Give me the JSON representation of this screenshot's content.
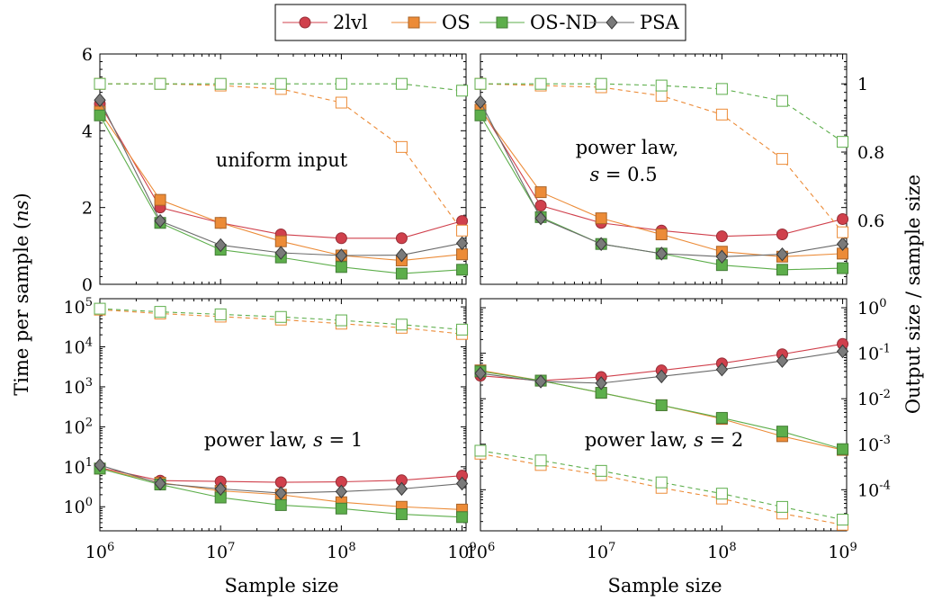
{
  "y_left_label": "Time per sample (",
  "y_left_label_unit": "ns",
  "y_left_label_end": ")",
  "y_right_label": "Output size / sample size",
  "x_label": "Sample size",
  "legend": [
    {
      "name": "2lvl",
      "color": "#d0404c",
      "marker": "circle"
    },
    {
      "name": "OS",
      "color": "#ec8b37",
      "marker": "square"
    },
    {
      "name": "OS-ND",
      "color": "#5dae4b",
      "marker": "square"
    },
    {
      "name": "PSA",
      "color": "#6a6a6a",
      "marker": "diamond"
    }
  ],
  "chart_data": [
    {
      "type": "line",
      "panel_label": "uniform input",
      "x": [
        1000000,
        3160000,
        10000000,
        31600000,
        100000000,
        316000000,
        1000000000
      ],
      "x_ticks": [
        "10^6",
        "10^7",
        "10^8",
        "10^9"
      ],
      "left_axis": {
        "scale": "linear",
        "ylim": [
          0,
          6
        ],
        "ticks": [
          "0",
          "2",
          "4",
          "6"
        ]
      },
      "right_axis": {
        "scale": "linear",
        "ylim": [
          0.4125,
          1.0875
        ]
      },
      "series": [
        {
          "name": "2lvl",
          "axis": "left",
          "style": "solid",
          "values": [
            4.7,
            2.0,
            1.6,
            1.3,
            1.2,
            1.2,
            1.65
          ]
        },
        {
          "name": "OS",
          "axis": "left",
          "style": "solid",
          "values": [
            4.5,
            2.2,
            1.6,
            1.12,
            0.75,
            0.62,
            0.78
          ]
        },
        {
          "name": "OS-ND",
          "axis": "left",
          "style": "solid",
          "values": [
            4.4,
            1.6,
            0.9,
            0.7,
            0.45,
            0.28,
            0.38
          ]
        },
        {
          "name": "PSA",
          "axis": "left",
          "style": "solid",
          "values": [
            4.8,
            1.65,
            1.02,
            0.82,
            0.75,
            0.76,
            1.07
          ]
        },
        {
          "name": "OS",
          "axis": "right",
          "style": "dashed",
          "values": [
            1.0,
            1.0,
            0.995,
            0.985,
            0.945,
            0.815,
            0.57
          ]
        },
        {
          "name": "OS-ND",
          "axis": "right",
          "style": "dashed",
          "values": [
            1.0,
            1.0,
            1.0,
            1.0,
            1.0,
            1.0,
            0.98
          ]
        }
      ]
    },
    {
      "type": "line",
      "panel_label": "power law,",
      "panel_label_2": "s = 0.5",
      "x": [
        1000000,
        3160000,
        10000000,
        31600000,
        100000000,
        316000000,
        1000000000
      ],
      "x_ticks": [
        "10^6",
        "10^7",
        "10^8",
        "10^9"
      ],
      "left_axis": {
        "scale": "linear",
        "ylim": [
          0,
          6
        ]
      },
      "right_axis": {
        "scale": "linear",
        "ylim": [
          0.4125,
          1.0875
        ],
        "ticks": [
          "0.6",
          "0.8",
          "1"
        ]
      },
      "series": [
        {
          "name": "2lvl",
          "axis": "left",
          "style": "solid",
          "values": [
            4.6,
            2.05,
            1.6,
            1.4,
            1.25,
            1.3,
            1.7
          ]
        },
        {
          "name": "OS",
          "axis": "left",
          "style": "solid",
          "values": [
            4.55,
            2.4,
            1.72,
            1.3,
            0.85,
            0.72,
            0.8
          ]
        },
        {
          "name": "OS-ND",
          "axis": "left",
          "style": "solid",
          "values": [
            4.4,
            1.75,
            1.05,
            0.8,
            0.5,
            0.38,
            0.42
          ]
        },
        {
          "name": "PSA",
          "axis": "left",
          "style": "solid",
          "values": [
            4.75,
            1.72,
            1.05,
            0.8,
            0.72,
            0.78,
            1.05
          ]
        },
        {
          "name": "OS",
          "axis": "right",
          "style": "dashed",
          "values": [
            1.0,
            0.995,
            0.99,
            0.965,
            0.91,
            0.78,
            0.565
          ]
        },
        {
          "name": "OS-ND",
          "axis": "right",
          "style": "dashed",
          "values": [
            1.0,
            1.0,
            1.0,
            0.995,
            0.985,
            0.95,
            0.83
          ]
        }
      ]
    },
    {
      "type": "line",
      "panel_label": "power law, s = 1",
      "x": [
        1000000,
        3160000,
        10000000,
        31600000,
        100000000,
        316000000,
        1000000000
      ],
      "x_ticks": [
        "10^6",
        "10^7",
        "10^8",
        "10^9"
      ],
      "left_axis": {
        "scale": "log",
        "ylim": [
          0.25,
          160000
        ],
        "ticks": [
          "10^0",
          "10^1",
          "10^2",
          "10^3",
          "10^4",
          "10^5"
        ]
      },
      "right_axis": {
        "scale": "log",
        "ylim": [
          1.25e-05,
          1.58
        ]
      },
      "series": [
        {
          "name": "2lvl",
          "axis": "left",
          "style": "solid",
          "values": [
            9.5,
            4.5,
            4.3,
            4.1,
            4.2,
            4.6,
            6.0
          ]
        },
        {
          "name": "OS",
          "axis": "left",
          "style": "solid",
          "values": [
            9.0,
            4.0,
            2.5,
            2.0,
            1.3,
            1.0,
            0.85
          ]
        },
        {
          "name": "OS-ND",
          "axis": "left",
          "style": "solid",
          "values": [
            9.0,
            3.6,
            1.7,
            1.1,
            0.9,
            0.65,
            0.55
          ]
        },
        {
          "name": "PSA",
          "axis": "left",
          "style": "solid",
          "values": [
            11.0,
            3.8,
            2.8,
            2.2,
            2.4,
            2.8,
            3.8
          ]
        },
        {
          "name": "OS",
          "axis": "left",
          "style": "dashed",
          "values": [
            85000,
            68000,
            57000,
            48000,
            38000,
            30000,
            21000
          ]
        },
        {
          "name": "OS-ND",
          "axis": "left",
          "style": "dashed",
          "values": [
            90000,
            75000,
            65000,
            56000,
            46000,
            36000,
            27000
          ]
        }
      ]
    },
    {
      "type": "line",
      "panel_label": "power law, s = 2",
      "x": [
        1000000,
        3160000,
        10000000,
        31600000,
        100000000,
        316000000,
        1000000000
      ],
      "x_ticks": [
        "10^6",
        "10^7",
        "10^8",
        "10^9"
      ],
      "left_axis": {
        "scale": "log",
        "ylim": [
          0.25,
          160000
        ]
      },
      "right_axis": {
        "scale": "log",
        "ylim": [
          1.25e-05,
          1.58
        ],
        "ticks": [
          "10^-4",
          "10^-3",
          "10^-2",
          "10^-1",
          "10^0"
        ]
      },
      "series": [
        {
          "name": "2lvl",
          "axis": "right",
          "style": "solid",
          "values": [
            0.032,
            0.025,
            0.03,
            0.042,
            0.06,
            0.095,
            0.16
          ]
        },
        {
          "name": "OS",
          "axis": "right",
          "style": "solid",
          "values": [
            0.042,
            0.025,
            0.0135,
            0.0072,
            0.0036,
            0.0015,
            0.00075
          ]
        },
        {
          "name": "OS-ND",
          "axis": "right",
          "style": "solid",
          "values": [
            0.04,
            0.025,
            0.0135,
            0.0072,
            0.0038,
            0.0019,
            0.00078
          ]
        },
        {
          "name": "PSA",
          "axis": "right",
          "style": "solid",
          "values": [
            0.036,
            0.024,
            0.022,
            0.031,
            0.044,
            0.068,
            0.11
          ]
        },
        {
          "name": "OS",
          "axis": "right",
          "style": "dashed",
          "values": [
            0.00062,
            0.00035,
            0.00021,
            0.00011,
            6.4e-05,
            3e-05,
            1.7e-05
          ]
        },
        {
          "name": "OS-ND",
          "axis": "right",
          "style": "dashed",
          "values": [
            0.00072,
            0.00044,
            0.00026,
            0.000145,
            8.2e-05,
            4.2e-05,
            2.2e-05
          ]
        }
      ]
    }
  ]
}
